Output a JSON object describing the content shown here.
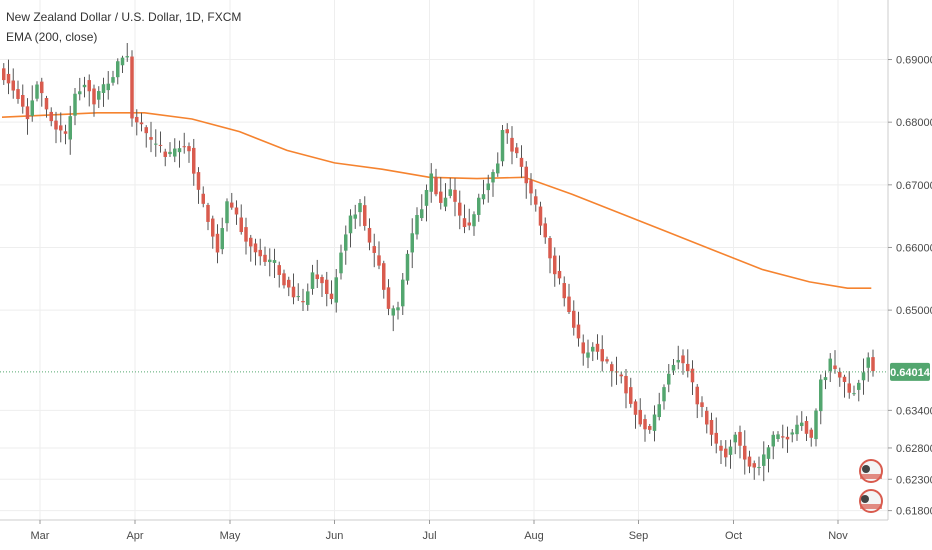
{
  "chart_data": {
    "type": "candlestick",
    "title": "New Zealand Dollar / U.S. Dollar, 1D, FXCM",
    "indicator": "EMA (200, close)",
    "ylim": [
      0.6165,
      0.6995
    ],
    "y_ticks": [
      "0.69000",
      "0.68000",
      "0.67000",
      "0.66000",
      "0.65000",
      "0.63400",
      "0.62800",
      "0.62300",
      "0.61800"
    ],
    "y_tick_values": [
      0.69,
      0.68,
      0.67,
      0.66,
      0.65,
      0.634,
      0.628,
      0.623,
      0.618
    ],
    "month_labels": [
      {
        "label": "Mar",
        "index": 8
      },
      {
        "label": "Apr",
        "index": 28
      },
      {
        "label": "May",
        "index": 48
      },
      {
        "label": "Jun",
        "index": 70
      },
      {
        "label": "Jul",
        "index": 90
      },
      {
        "label": "Aug",
        "index": 112
      },
      {
        "label": "Sep",
        "index": 134
      },
      {
        "label": "Oct",
        "index": 154
      },
      {
        "label": "Nov",
        "index": 176
      }
    ],
    "last_price": "0.64014",
    "last_price_value": 0.64014,
    "close_anchors": [
      [
        0,
        0.6875
      ],
      [
        3,
        0.6845
      ],
      [
        5,
        0.681
      ],
      [
        7,
        0.6865
      ],
      [
        9,
        0.6815
      ],
      [
        11,
        0.6795
      ],
      [
        13,
        0.6775
      ],
      [
        15,
        0.6845
      ],
      [
        17,
        0.6865
      ],
      [
        19,
        0.6835
      ],
      [
        21,
        0.6855
      ],
      [
        23,
        0.6875
      ],
      [
        25,
        0.6905
      ],
      [
        26,
        0.6905
      ],
      [
        27,
        0.6805
      ],
      [
        29,
        0.6795
      ],
      [
        31,
        0.6765
      ],
      [
        33,
        0.6755
      ],
      [
        35,
        0.6745
      ],
      [
        37,
        0.6765
      ],
      [
        39,
        0.6755
      ],
      [
        41,
        0.6685
      ],
      [
        43,
        0.6645
      ],
      [
        45,
        0.6595
      ],
      [
        47,
        0.6675
      ],
      [
        49,
        0.6645
      ],
      [
        51,
        0.6615
      ],
      [
        53,
        0.6595
      ],
      [
        55,
        0.6575
      ],
      [
        57,
        0.6575
      ],
      [
        59,
        0.6545
      ],
      [
        61,
        0.6525
      ],
      [
        63,
        0.6505
      ],
      [
        65,
        0.6555
      ],
      [
        67,
        0.6545
      ],
      [
        69,
        0.6515
      ],
      [
        71,
        0.6595
      ],
      [
        73,
        0.6645
      ],
      [
        75,
        0.6665
      ],
      [
        77,
        0.6605
      ],
      [
        79,
        0.6575
      ],
      [
        81,
        0.6495
      ],
      [
        83,
        0.6505
      ],
      [
        85,
        0.6595
      ],
      [
        87,
        0.6645
      ],
      [
        89,
        0.6685
      ],
      [
        90,
        0.6715
      ],
      [
        92,
        0.6665
      ],
      [
        94,
        0.6695
      ],
      [
        96,
        0.6645
      ],
      [
        98,
        0.6635
      ],
      [
        100,
        0.6675
      ],
      [
        102,
        0.6705
      ],
      [
        104,
        0.6735
      ],
      [
        105,
        0.6785
      ],
      [
        106,
        0.6775
      ],
      [
        108,
        0.6745
      ],
      [
        110,
        0.6705
      ],
      [
        112,
        0.6665
      ],
      [
        114,
        0.6615
      ],
      [
        116,
        0.6565
      ],
      [
        118,
        0.6525
      ],
      [
        120,
        0.6475
      ],
      [
        122,
        0.6425
      ],
      [
        124,
        0.6445
      ],
      [
        126,
        0.6425
      ],
      [
        128,
        0.6405
      ],
      [
        130,
        0.6395
      ],
      [
        132,
        0.6355
      ],
      [
        134,
        0.6325
      ],
      [
        136,
        0.6305
      ],
      [
        138,
        0.6355
      ],
      [
        140,
        0.6405
      ],
      [
        142,
        0.6425
      ],
      [
        144,
        0.6405
      ],
      [
        146,
        0.6355
      ],
      [
        148,
        0.6325
      ],
      [
        150,
        0.6285
      ],
      [
        152,
        0.6265
      ],
      [
        154,
        0.6305
      ],
      [
        156,
        0.6265
      ],
      [
        158,
        0.6245
      ],
      [
        160,
        0.6265
      ],
      [
        162,
        0.6295
      ],
      [
        164,
        0.6295
      ],
      [
        166,
        0.6305
      ],
      [
        168,
        0.6325
      ],
      [
        170,
        0.6295
      ],
      [
        172,
        0.6385
      ],
      [
        174,
        0.6415
      ],
      [
        176,
        0.6395
      ],
      [
        178,
        0.6365
      ],
      [
        180,
        0.6385
      ],
      [
        182,
        0.6425
      ],
      [
        183,
        0.6401
      ]
    ],
    "ema_points": [
      [
        0,
        0.6808
      ],
      [
        20,
        0.6815
      ],
      [
        30,
        0.6815
      ],
      [
        40,
        0.6805
      ],
      [
        50,
        0.6785
      ],
      [
        60,
        0.6755
      ],
      [
        70,
        0.6735
      ],
      [
        80,
        0.6725
      ],
      [
        90,
        0.6712
      ],
      [
        100,
        0.671
      ],
      [
        110,
        0.6712
      ],
      [
        120,
        0.6685
      ],
      [
        130,
        0.6655
      ],
      [
        140,
        0.6625
      ],
      [
        150,
        0.6595
      ],
      [
        160,
        0.6565
      ],
      [
        170,
        0.6545
      ],
      [
        178,
        0.6535
      ],
      [
        183,
        0.6535
      ]
    ],
    "colors": {
      "up": "#53a66f",
      "down": "#d95b4e",
      "wick": "#555555",
      "ema": "#f5832f",
      "grid": "#eeeeee",
      "last_price": "#53a66f"
    },
    "grid": true
  }
}
